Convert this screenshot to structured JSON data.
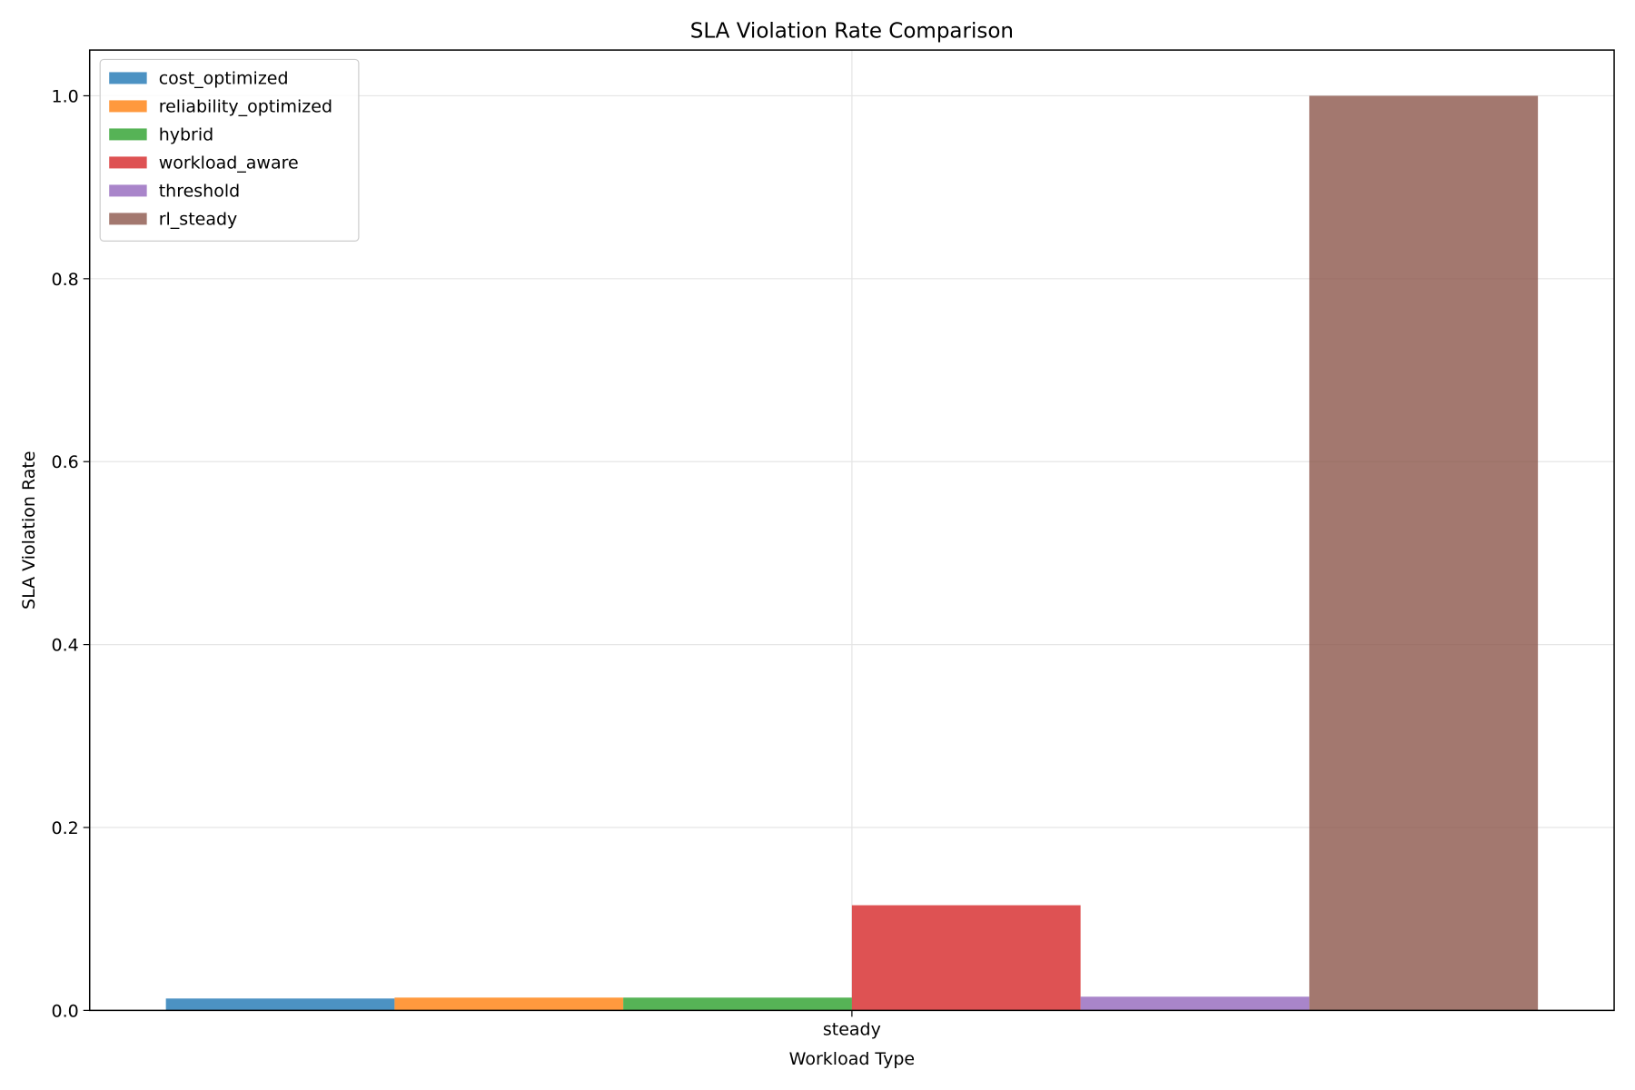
{
  "chart_data": {
    "type": "bar",
    "title": "SLA Violation Rate Comparison",
    "xlabel": "Workload Type",
    "ylabel": "SLA Violation Rate",
    "categories": [
      "steady"
    ],
    "ylim": [
      0,
      1.05
    ],
    "yticks": [
      0.0,
      0.2,
      0.4,
      0.6,
      0.8,
      1.0
    ],
    "ytick_labels": [
      "0.0",
      "0.2",
      "0.4",
      "0.6",
      "0.8",
      "1.0"
    ],
    "grid": true,
    "legend_position": "top-left",
    "series": [
      {
        "name": "cost_optimized",
        "color": "#1f77b4",
        "values": [
          0.013
        ]
      },
      {
        "name": "reliability_optimized",
        "color": "#ff7f0e",
        "values": [
          0.014
        ]
      },
      {
        "name": "hybrid",
        "color": "#2ca02c",
        "values": [
          0.014
        ]
      },
      {
        "name": "workload_aware",
        "color": "#d62728",
        "values": [
          0.115
        ]
      },
      {
        "name": "threshold",
        "color": "#9467bd",
        "values": [
          0.015
        ]
      },
      {
        "name": "rl_steady",
        "color": "#8c564b",
        "values": [
          1.0
        ]
      }
    ]
  }
}
